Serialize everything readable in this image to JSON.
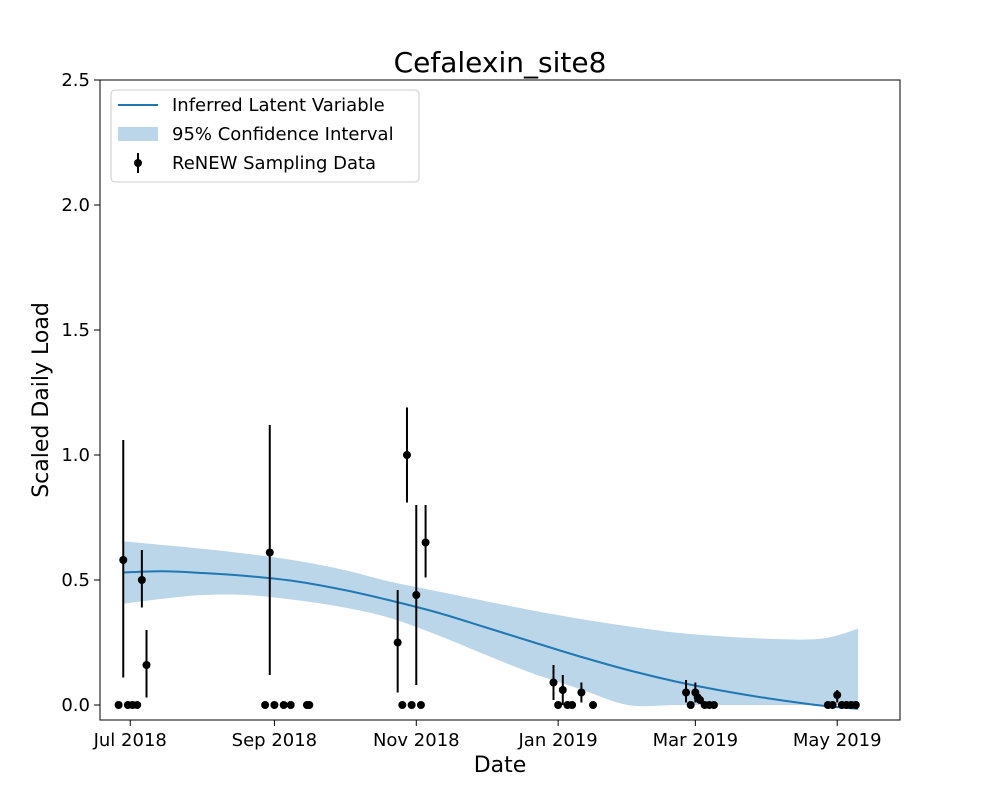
{
  "chart_data": {
    "type": "line",
    "title": "Cefalexin_site8",
    "xlabel": "Date",
    "ylabel": "Scaled Daily Load",
    "xlim": [
      "2018-06-18",
      "2019-05-28"
    ],
    "ylim": [
      -0.06,
      2.5
    ],
    "x_ticks": [
      {
        "date": "2018-07-01",
        "label": "Jul 2018"
      },
      {
        "date": "2018-09-01",
        "label": "Sep 2018"
      },
      {
        "date": "2018-11-01",
        "label": "Nov 2018"
      },
      {
        "date": "2019-01-01",
        "label": "Jan 2019"
      },
      {
        "date": "2019-03-01",
        "label": "Mar 2019"
      },
      {
        "date": "2019-05-01",
        "label": "May 2019"
      }
    ],
    "y_ticks": [
      {
        "value": 0.0,
        "label": "0.0"
      },
      {
        "value": 0.5,
        "label": "0.5"
      },
      {
        "value": 1.0,
        "label": "1.0"
      },
      {
        "value": 1.5,
        "label": "1.5"
      },
      {
        "value": 2.0,
        "label": "2.0"
      },
      {
        "value": 2.5,
        "label": "2.5"
      }
    ],
    "grid": false,
    "legend": {
      "position": "top-left",
      "entries": [
        "Inferred Latent Variable",
        "95% Confidence Interval",
        "ReNEW Sampling Data"
      ]
    },
    "colors": {
      "line": "#1f77b4",
      "band": "#1f77b4",
      "points": "#000000"
    },
    "latent": [
      {
        "x": "2018-06-28",
        "y": 0.53,
        "lo": 0.405,
        "hi": 0.655
      },
      {
        "x": "2018-07-15",
        "y": 0.535,
        "lo": 0.425,
        "hi": 0.64
      },
      {
        "x": "2018-08-01",
        "y": 0.528,
        "lo": 0.44,
        "hi": 0.625
      },
      {
        "x": "2018-08-20",
        "y": 0.516,
        "lo": 0.44,
        "hi": 0.605
      },
      {
        "x": "2018-09-10",
        "y": 0.495,
        "lo": 0.42,
        "hi": 0.578
      },
      {
        "x": "2018-10-01",
        "y": 0.46,
        "lo": 0.39,
        "hi": 0.54
      },
      {
        "x": "2018-10-20",
        "y": 0.42,
        "lo": 0.35,
        "hi": 0.495
      },
      {
        "x": "2018-11-10",
        "y": 0.37,
        "lo": 0.28,
        "hi": 0.455
      },
      {
        "x": "2018-12-01",
        "y": 0.31,
        "lo": 0.2,
        "hi": 0.415
      },
      {
        "x": "2018-12-20",
        "y": 0.255,
        "lo": 0.13,
        "hi": 0.38
      },
      {
        "x": "2019-01-10",
        "y": 0.195,
        "lo": 0.065,
        "hi": 0.345
      },
      {
        "x": "2019-01-31",
        "y": 0.14,
        "lo": 0.0,
        "hi": 0.315
      },
      {
        "x": "2019-02-20",
        "y": 0.095,
        "lo": 0.0,
        "hi": 0.29
      },
      {
        "x": "2019-03-12",
        "y": 0.058,
        "lo": 0.0,
        "hi": 0.275
      },
      {
        "x": "2019-04-01",
        "y": 0.027,
        "lo": 0.0,
        "hi": 0.265
      },
      {
        "x": "2019-04-24",
        "y": -0.002,
        "lo": 0.0,
        "hi": 0.265
      },
      {
        "x": "2019-05-10",
        "y": -0.015,
        "lo": 0.0,
        "hi": 0.305
      }
    ],
    "samples": [
      {
        "x": "2018-06-26",
        "y": 0.0
      },
      {
        "x": "2018-06-28",
        "y": 0.58,
        "lo": 0.11,
        "hi": 1.06
      },
      {
        "x": "2018-06-30",
        "y": 0.0
      },
      {
        "x": "2018-07-02",
        "y": 0.0
      },
      {
        "x": "2018-07-04",
        "y": 0.0
      },
      {
        "x": "2018-07-06",
        "y": 0.5,
        "lo": 0.39,
        "hi": 0.62
      },
      {
        "x": "2018-07-08",
        "y": 0.16,
        "lo": 0.03,
        "hi": 0.3
      },
      {
        "x": "2018-08-28",
        "y": 0.0
      },
      {
        "x": "2018-08-30",
        "y": 0.61,
        "lo": 0.12,
        "hi": 1.12
      },
      {
        "x": "2018-09-01",
        "y": 0.0
      },
      {
        "x": "2018-09-05",
        "y": 0.0
      },
      {
        "x": "2018-09-08",
        "y": 0.0
      },
      {
        "x": "2018-09-15",
        "y": 0.0
      },
      {
        "x": "2018-09-16",
        "y": 0.0
      },
      {
        "x": "2018-10-24",
        "y": 0.25,
        "lo": 0.05,
        "hi": 0.46
      },
      {
        "x": "2018-10-26",
        "y": 0.0
      },
      {
        "x": "2018-10-28",
        "y": 1.0,
        "lo": 0.81,
        "hi": 1.19
      },
      {
        "x": "2018-10-30",
        "y": 0.0
      },
      {
        "x": "2018-11-01",
        "y": 0.44,
        "lo": 0.08,
        "hi": 0.8
      },
      {
        "x": "2018-11-03",
        "y": 0.0
      },
      {
        "x": "2018-11-05",
        "y": 0.65,
        "lo": 0.51,
        "hi": 0.8
      },
      {
        "x": "2018-12-30",
        "y": 0.09,
        "lo": 0.02,
        "hi": 0.16
      },
      {
        "x": "2019-01-01",
        "y": 0.0
      },
      {
        "x": "2019-01-03",
        "y": 0.06,
        "lo": 0.0,
        "hi": 0.12
      },
      {
        "x": "2019-01-05",
        "y": 0.0
      },
      {
        "x": "2019-01-07",
        "y": 0.0
      },
      {
        "x": "2019-01-11",
        "y": 0.05,
        "lo": 0.01,
        "hi": 0.09
      },
      {
        "x": "2019-01-16",
        "y": 0.0
      },
      {
        "x": "2019-02-25",
        "y": 0.05,
        "lo": 0.01,
        "hi": 0.1
      },
      {
        "x": "2019-02-27",
        "y": 0.0
      },
      {
        "x": "2019-03-01",
        "y": 0.05,
        "lo": 0.01,
        "hi": 0.09
      },
      {
        "x": "2019-03-02",
        "y": 0.03
      },
      {
        "x": "2019-03-03",
        "y": 0.02
      },
      {
        "x": "2019-03-05",
        "y": 0.0
      },
      {
        "x": "2019-03-07",
        "y": 0.0
      },
      {
        "x": "2019-03-09",
        "y": 0.0
      },
      {
        "x": "2019-04-27",
        "y": 0.0
      },
      {
        "x": "2019-04-29",
        "y": 0.0
      },
      {
        "x": "2019-05-01",
        "y": 0.04,
        "lo": 0.01,
        "hi": 0.06
      },
      {
        "x": "2019-05-03",
        "y": 0.0
      },
      {
        "x": "2019-05-05",
        "y": 0.0
      },
      {
        "x": "2019-05-07",
        "y": 0.0
      },
      {
        "x": "2019-05-09",
        "y": 0.0
      }
    ]
  }
}
